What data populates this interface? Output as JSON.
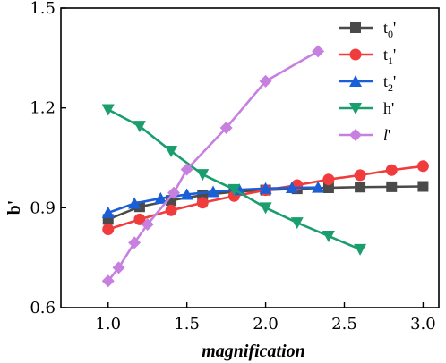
{
  "chart_data": {
    "type": "line",
    "xlabel": "magnification",
    "ylabel": "b'",
    "xlim": [
      0.7,
      3.1
    ],
    "ylim": [
      0.6,
      1.5
    ],
    "x_ticks": [
      1.0,
      1.5,
      2.0,
      2.5,
      3.0
    ],
    "y_ticks": [
      0.6,
      0.9,
      1.2,
      1.5
    ],
    "x_tick_labels": [
      "1.0",
      "1.5",
      "2.0",
      "2.5",
      "3.0"
    ],
    "y_tick_labels": [
      "0.6",
      "0.9",
      "1.2",
      "1.5"
    ],
    "legend_position": "top-right",
    "series": [
      {
        "name": "t0'",
        "label_main": "t",
        "label_sub": "0",
        "label_suffix": "'",
        "color": "#4a4a4a",
        "marker": "square",
        "x": [
          1.0,
          1.2,
          1.4,
          1.6,
          1.8,
          2.0,
          2.2,
          2.4,
          2.6,
          2.8,
          3.0
        ],
        "y": [
          0.865,
          0.903,
          0.922,
          0.938,
          0.948,
          0.953,
          0.957,
          0.96,
          0.962,
          0.963,
          0.964
        ]
      },
      {
        "name": "t1'",
        "label_main": "t",
        "label_sub": "1",
        "label_suffix": "'",
        "color": "#f03c3c",
        "marker": "circle",
        "x": [
          1.0,
          1.2,
          1.4,
          1.6,
          1.8,
          2.0,
          2.2,
          2.4,
          2.6,
          2.8,
          3.0
        ],
        "y": [
          0.835,
          0.865,
          0.892,
          0.915,
          0.935,
          0.953,
          0.968,
          0.985,
          0.998,
          1.013,
          1.025
        ]
      },
      {
        "name": "t2'",
        "label_main": "t",
        "label_sub": "2",
        "label_suffix": "'",
        "color": "#1a5fd8",
        "marker": "triangle-up",
        "x": [
          1.0,
          1.167,
          1.333,
          1.5,
          1.667,
          1.833,
          2.0,
          2.167,
          2.333
        ],
        "y": [
          0.885,
          0.913,
          0.928,
          0.94,
          0.948,
          0.954,
          0.958,
          0.96,
          0.961
        ]
      },
      {
        "name": "h'",
        "label_main": "h",
        "label_sub": "",
        "label_suffix": "'",
        "color": "#1a9e6e",
        "marker": "triangle-down",
        "x": [
          1.0,
          1.2,
          1.4,
          1.6,
          1.8,
          2.0,
          2.2,
          2.4,
          2.6
        ],
        "y": [
          1.195,
          1.145,
          1.07,
          1.0,
          0.955,
          0.9,
          0.855,
          0.815,
          0.775
        ]
      },
      {
        "name": "l'",
        "label_main": "l",
        "label_sub": "",
        "label_suffix": "'",
        "color": "#c77fe0",
        "marker": "diamond",
        "x": [
          1.0,
          1.067,
          1.167,
          1.25,
          1.417,
          1.5,
          1.75,
          2.0,
          2.333
        ],
        "y": [
          0.68,
          0.72,
          0.795,
          0.85,
          0.945,
          1.015,
          1.14,
          1.28,
          1.37
        ]
      }
    ]
  }
}
